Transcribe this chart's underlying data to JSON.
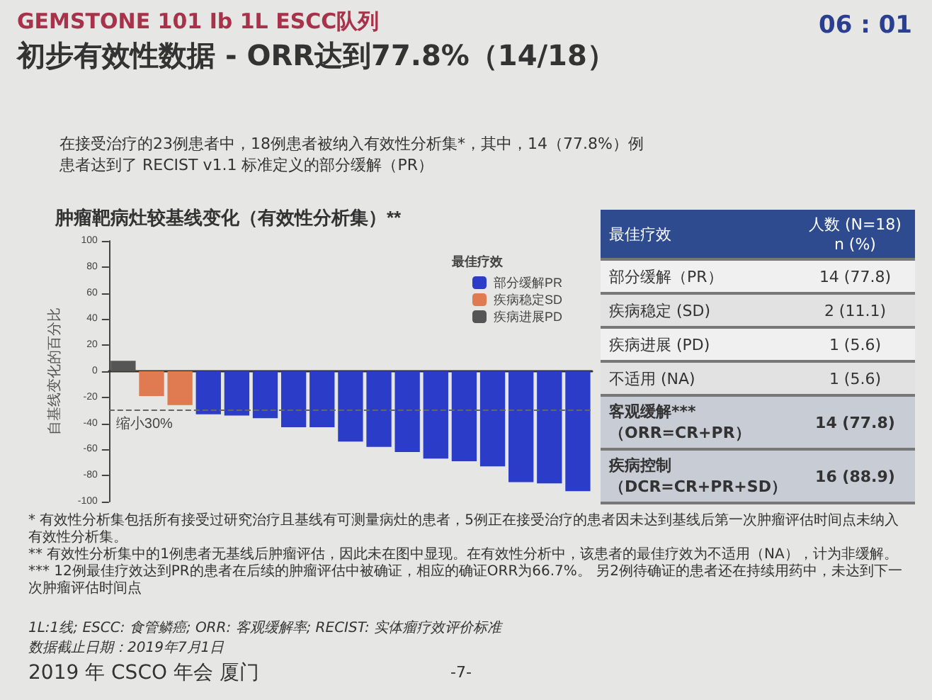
{
  "chart_data": [
    {
      "type": "other",
      "title": "GEMSTONE 101 Ib 1L ESCC队列",
      "subtitle": "初步有效性数据 - ORR达到77.8%（14/18）",
      "annotations": [
        "06 : 01",
        "在接受治疗的23例患者中，18例患者被纳入有效性分析集*，其中，14（77.8%）例患者达到了 RECIST v1.1 标准定义的部分缓解（PR）",
        "* 有效性分析集包括所有接受过研究治疗且基线有可测量病灶的患者，5例正在接受治疗的患者因未达到基线后第一次肿瘤评估时间点未纳入有效性分析集。",
        "** 有效性分析集中的1例患者无基线后肿瘤评估，因此未在图中显现。在有效性分析中，该患者的最佳疗效为不适用（NA），计为非缓解。",
        "*** 12例最佳疗效达到PR的患者在后续的肿瘤评估中被确证，相应的确证ORR为66.7%。 另2例待确证的患者还在持续用药中，未达到下一次肿瘤评估时间点",
        "1L:1线; ESCC: 食管鳞癌; ORR: 客观缓解率; RECIST: 实体瘤疗效评价标准",
        "数据截止日期：2019年7月1日",
        "2019 年 CSCO 年会 厦门",
        "-7-"
      ]
    },
    {
      "type": "bar",
      "title": "肿瘤靶病灶较基线变化（有效性分析集）**",
      "ylabel": "自基线变化的百分比",
      "legend_title": "最佳疗效",
      "legend": "top right",
      "categories": [
        null,
        null,
        null,
        null,
        null,
        null,
        null,
        null,
        null,
        null,
        null,
        null,
        null,
        null,
        null,
        null,
        null
      ],
      "series": [
        {
          "name": "部分缓解PR",
          "color": "#2b3cc8",
          "values": [
            null,
            null,
            null,
            -33,
            -34,
            -36,
            -43,
            -43,
            -54,
            -58,
            -62,
            -67,
            -69,
            -73,
            -85,
            -86,
            -92
          ]
        },
        {
          "name": "疾病稳定SD",
          "color": "#e07a50",
          "values": [
            null,
            -19,
            -26,
            null,
            null,
            null,
            null,
            null,
            null,
            null,
            null,
            null,
            null,
            null,
            null,
            null,
            null
          ]
        },
        {
          "name": "疾病进展PD",
          "color": "#555555",
          "values": [
            8,
            null,
            null,
            null,
            null,
            null,
            null,
            null,
            null,
            null,
            null,
            null,
            null,
            null,
            null,
            null,
            null
          ]
        }
      ],
      "ylim": [
        -100,
        100
      ],
      "yticks": [
        -100,
        -80,
        -60,
        -40,
        -20,
        0,
        20,
        40,
        60,
        80,
        100
      ],
      "ref_lines": [
        {
          "axis": "y",
          "value": -30,
          "label": "缩小30%",
          "line_style": "dashed",
          "color": "#666666"
        }
      ]
    },
    {
      "type": "other",
      "annotations": [
        "最佳疗效",
        "人数 (N=18) n (%)",
        "部分缓解（PR）",
        "14 (77.8)",
        "疾病稳定 (SD)",
        "2 (11.1)",
        "疾病进展 (PD)",
        "1 (5.6)",
        "不适用 (NA)",
        "1 (5.6)",
        "客观缓解***（ORR=CR+PR）",
        "14 (77.8)",
        "疾病控制（DCR=CR+PR+SD）",
        "16 (88.9)"
      ]
    }
  ]
}
